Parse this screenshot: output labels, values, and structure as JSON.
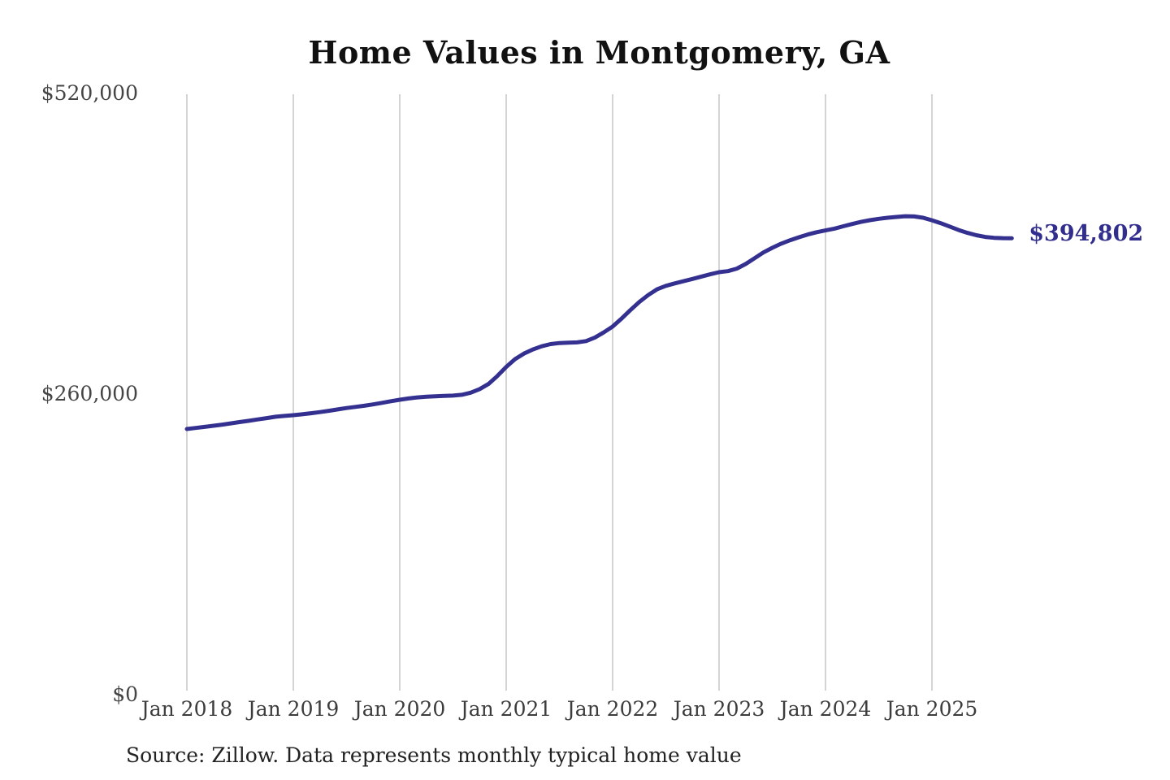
{
  "title": "Home Values in Montgomery, GA",
  "current_value_label": "$394,802",
  "source_note": "Source: Zillow. Data represents monthly typical home value",
  "colors": {
    "line": "#343090",
    "current_value": "#312e8e",
    "grid": "#c6c6c6",
    "title_text": "#111111",
    "axis_text": "#3c3c3c",
    "source_text": "#222222",
    "background": "#ffffff"
  },
  "chart_data": {
    "type": "line",
    "title": "Home Values in Montgomery, GA",
    "ylabel": "",
    "xlabel": "",
    "unit": "USD",
    "frequency": "monthly",
    "start_month": "2018-01",
    "end_month": "2025-10",
    "legend": "none",
    "grid": "vertical-only",
    "ylim": [
      0,
      520000
    ],
    "y_ticks": [
      {
        "label": "$520,000",
        "value": 520000
      },
      {
        "label": "$260,000",
        "value": 260000
      },
      {
        "label": "$0",
        "value": 0
      }
    ],
    "x_ticks": [
      {
        "label": "Jan 2018",
        "month_index": 0
      },
      {
        "label": "Jan 2019",
        "month_index": 12
      },
      {
        "label": "Jan 2020",
        "month_index": 24
      },
      {
        "label": "Jan 2021",
        "month_index": 36
      },
      {
        "label": "Jan 2022",
        "month_index": 48
      },
      {
        "label": "Jan 2023",
        "month_index": 60
      },
      {
        "label": "Jan 2024",
        "month_index": 72
      },
      {
        "label": "Jan 2025",
        "month_index": 84
      }
    ],
    "final_value": 394802,
    "values": [
      229800,
      230700,
      231600,
      232600,
      233600,
      234700,
      235800,
      236900,
      238100,
      239200,
      240400,
      241100,
      241700,
      242500,
      243400,
      244400,
      245500,
      246700,
      247900,
      248900,
      249900,
      251100,
      252400,
      253800,
      255100,
      256200,
      257100,
      257700,
      258100,
      258400,
      258700,
      259400,
      261200,
      264300,
      268700,
      275600,
      283500,
      290200,
      295000,
      298600,
      301300,
      303200,
      304100,
      304400,
      304700,
      305800,
      308900,
      313300,
      318400,
      325200,
      332600,
      339600,
      345600,
      350600,
      353600,
      355700,
      357600,
      359600,
      361600,
      363600,
      365400,
      366300,
      368500,
      372500,
      377500,
      382500,
      386500,
      390100,
      393000,
      395600,
      398000,
      400000,
      401500,
      403100,
      405100,
      407100,
      408900,
      410400,
      411600,
      412500,
      413200,
      413800,
      413600,
      412500,
      410300,
      407800,
      404900,
      401900,
      399400,
      397400,
      395900,
      395100,
      394850,
      394802
    ]
  }
}
